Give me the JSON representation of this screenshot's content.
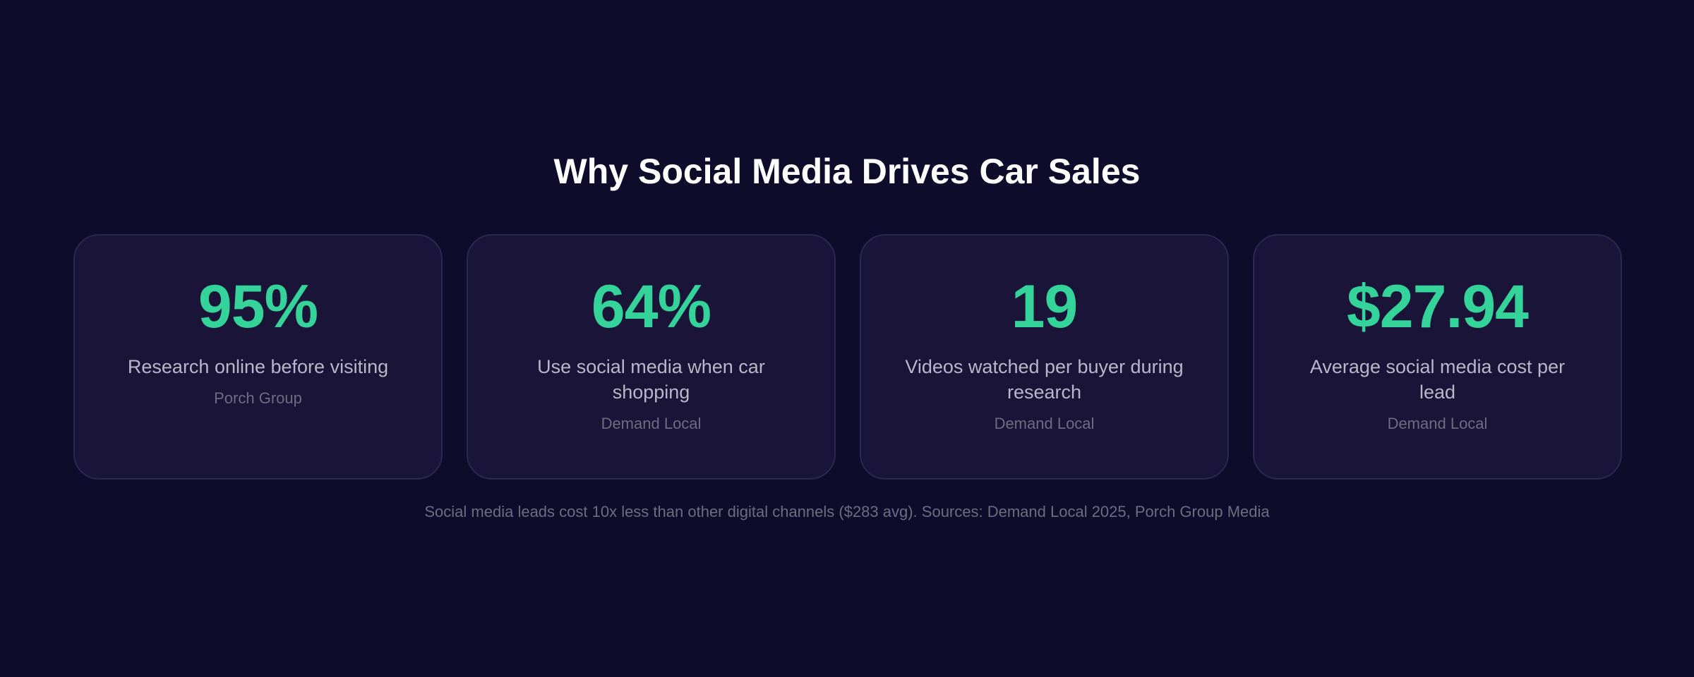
{
  "title": "Why Social Media Drives Car Sales",
  "cards": [
    {
      "stat": "95%",
      "label": "Research online before visiting",
      "source": "Porch Group"
    },
    {
      "stat": "64%",
      "label": "Use social media when car shopping",
      "source": "Demand Local"
    },
    {
      "stat": "19",
      "label": "Videos watched per buyer during research",
      "source": "Demand Local"
    },
    {
      "stat": "$27.94",
      "label": "Average social media cost per lead",
      "source": "Demand Local"
    }
  ],
  "footnote": "Social media leads cost 10x less than other digital channels ($283 avg). Sources: Demand Local 2025, Porch Group Media"
}
